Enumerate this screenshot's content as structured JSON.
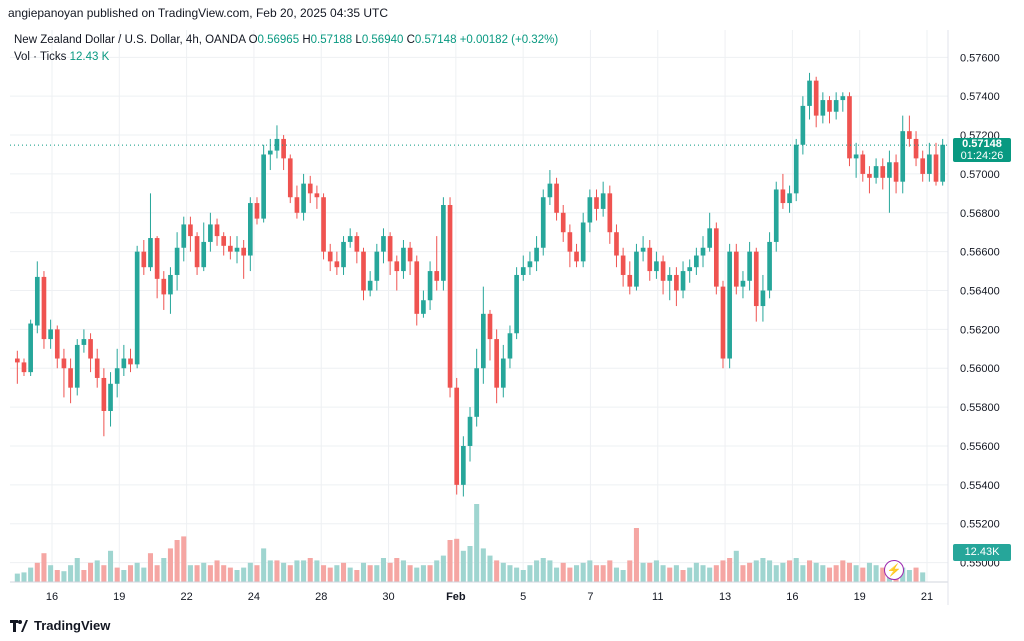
{
  "header": {
    "published": "angiepanoyan published on TradingView.com, Feb 20, 2025 04:35 UTC"
  },
  "legend": {
    "symbol": "New Zealand Dollar / U.S. Dollar, 4h, OANDA",
    "o_label": "O",
    "o_value": "0.56965",
    "h_label": "H",
    "h_value": "0.57188",
    "l_label": "L",
    "l_value": "0.56940",
    "c_label": "C",
    "c_value": "0.57148",
    "change": "+0.00182 (+0.32%)",
    "vol_label": "Vol · Ticks",
    "vol_value": "12.43 K"
  },
  "price_tag": {
    "price": "0.57148",
    "countdown": "01:24:26"
  },
  "vol_tag": "12.43K",
  "footer": {
    "brand": "TradingView"
  },
  "colors": {
    "up": "#26a69a",
    "down": "#ef5350",
    "vol_up": "#9fd5d0",
    "vol_down": "#f5a6a3",
    "grid": "#eef0f3",
    "axis_text": "#131722"
  },
  "chart_data": {
    "type": "candlestick",
    "interval": "4h",
    "ylim": [
      0.549,
      0.5772
    ],
    "y_ticks": [
      "0.57600",
      "0.57400",
      "0.57200",
      "0.57000",
      "0.56800",
      "0.56600",
      "0.56400",
      "0.56200",
      "0.56000",
      "0.55800",
      "0.55600",
      "0.55400",
      "0.55200",
      "0.55000"
    ],
    "x_ticks": [
      "16",
      "19",
      "22",
      "24",
      "28",
      "30",
      "Feb",
      "5",
      "7",
      "11",
      "13",
      "16",
      "19",
      "21"
    ],
    "last_close": 0.57148,
    "candles": [
      [
        0.5605,
        0.5603,
        0.5609,
        0.5592
      ],
      [
        0.5603,
        0.5598,
        0.5605,
        0.5596
      ],
      [
        0.5598,
        0.5623,
        0.5625,
        0.5596
      ],
      [
        0.5622,
        0.5647,
        0.5655,
        0.5618
      ],
      [
        0.5647,
        0.5615,
        0.565,
        0.561
      ],
      [
        0.5615,
        0.562,
        0.5625,
        0.561
      ],
      [
        0.562,
        0.5605,
        0.5622,
        0.56
      ],
      [
        0.5605,
        0.56,
        0.561,
        0.5585
      ],
      [
        0.56,
        0.559,
        0.5605,
        0.5582
      ],
      [
        0.559,
        0.5612,
        0.5615,
        0.5586
      ],
      [
        0.5612,
        0.5615,
        0.562,
        0.5608
      ],
      [
        0.5615,
        0.5605,
        0.5618,
        0.5598
      ],
      [
        0.5605,
        0.5595,
        0.561,
        0.559
      ],
      [
        0.5595,
        0.5578,
        0.56,
        0.5565
      ],
      [
        0.5578,
        0.5592,
        0.5598,
        0.557
      ],
      [
        0.5592,
        0.56,
        0.561,
        0.5585
      ],
      [
        0.56,
        0.5605,
        0.5612,
        0.5596
      ],
      [
        0.5605,
        0.5602,
        0.561,
        0.5598
      ],
      [
        0.5602,
        0.566,
        0.5663,
        0.56
      ],
      [
        0.566,
        0.5652,
        0.5666,
        0.5648
      ],
      [
        0.5652,
        0.5667,
        0.569,
        0.565
      ],
      [
        0.5667,
        0.5646,
        0.5668,
        0.5636
      ],
      [
        0.5646,
        0.5638,
        0.565,
        0.563
      ],
      [
        0.5638,
        0.5648,
        0.5652,
        0.5628
      ],
      [
        0.5648,
        0.5662,
        0.567,
        0.564
      ],
      [
        0.5662,
        0.5674,
        0.5678,
        0.5655
      ],
      [
        0.5674,
        0.5668,
        0.5678,
        0.566
      ],
      [
        0.5668,
        0.5652,
        0.567,
        0.5648
      ],
      [
        0.5652,
        0.5665,
        0.5675,
        0.565
      ],
      [
        0.5665,
        0.5674,
        0.568,
        0.566
      ],
      [
        0.5674,
        0.5668,
        0.5677,
        0.5663
      ],
      [
        0.5668,
        0.5663,
        0.567,
        0.5658
      ],
      [
        0.5663,
        0.566,
        0.5668,
        0.5656
      ],
      [
        0.566,
        0.5662,
        0.5668,
        0.5654
      ],
      [
        0.5662,
        0.5658,
        0.5666,
        0.5646
      ],
      [
        0.5658,
        0.5685,
        0.5688,
        0.565
      ],
      [
        0.5685,
        0.5677,
        0.5688,
        0.5674
      ],
      [
        0.5677,
        0.571,
        0.5715,
        0.5675
      ],
      [
        0.571,
        0.5712,
        0.5718,
        0.5702
      ],
      [
        0.5712,
        0.5718,
        0.5725,
        0.5708
      ],
      [
        0.5718,
        0.5708,
        0.572,
        0.5702
      ],
      [
        0.5708,
        0.5688,
        0.571,
        0.5685
      ],
      [
        0.5688,
        0.568,
        0.5694,
        0.5677
      ],
      [
        0.568,
        0.5695,
        0.57,
        0.5676
      ],
      [
        0.5695,
        0.569,
        0.5699,
        0.5685
      ],
      [
        0.569,
        0.5688,
        0.5694,
        0.5682
      ],
      [
        0.5688,
        0.566,
        0.569,
        0.5656
      ],
      [
        0.566,
        0.5655,
        0.5664,
        0.565
      ],
      [
        0.5655,
        0.5652,
        0.566,
        0.5648
      ],
      [
        0.5652,
        0.5665,
        0.5668,
        0.5648
      ],
      [
        0.5665,
        0.5668,
        0.5672,
        0.5662
      ],
      [
        0.5668,
        0.566,
        0.567,
        0.5654
      ],
      [
        0.566,
        0.564,
        0.5662,
        0.5635
      ],
      [
        0.564,
        0.5645,
        0.565,
        0.5637
      ],
      [
        0.5645,
        0.566,
        0.5664,
        0.564
      ],
      [
        0.566,
        0.5668,
        0.5672,
        0.5654
      ],
      [
        0.5668,
        0.5655,
        0.567,
        0.5648
      ],
      [
        0.5655,
        0.565,
        0.5658,
        0.564
      ],
      [
        0.565,
        0.5662,
        0.5666,
        0.5646
      ],
      [
        0.5662,
        0.5655,
        0.5665,
        0.5648
      ],
      [
        0.5655,
        0.5628,
        0.5658,
        0.5622
      ],
      [
        0.5628,
        0.5635,
        0.564,
        0.5626
      ],
      [
        0.5635,
        0.565,
        0.5655,
        0.563
      ],
      [
        0.565,
        0.5645,
        0.5668,
        0.564
      ],
      [
        0.5645,
        0.5684,
        0.5688,
        0.564
      ],
      [
        0.5684,
        0.559,
        0.5688,
        0.5585
      ],
      [
        0.559,
        0.554,
        0.5595,
        0.5535
      ],
      [
        0.554,
        0.556,
        0.5565,
        0.5534
      ],
      [
        0.556,
        0.5575,
        0.558,
        0.5552
      ],
      [
        0.5575,
        0.56,
        0.561,
        0.557
      ],
      [
        0.56,
        0.5628,
        0.5642,
        0.5592
      ],
      [
        0.5628,
        0.5615,
        0.563,
        0.5604
      ],
      [
        0.5615,
        0.559,
        0.562,
        0.5582
      ],
      [
        0.559,
        0.5605,
        0.5612,
        0.5585
      ],
      [
        0.5605,
        0.5618,
        0.5622,
        0.56
      ],
      [
        0.5618,
        0.5648,
        0.5652,
        0.5615
      ],
      [
        0.5648,
        0.5652,
        0.5658,
        0.5645
      ],
      [
        0.5652,
        0.5655,
        0.566,
        0.5648
      ],
      [
        0.5655,
        0.5662,
        0.5668,
        0.565
      ],
      [
        0.5662,
        0.5688,
        0.5692,
        0.5658
      ],
      [
        0.5688,
        0.5695,
        0.5702,
        0.5684
      ],
      [
        0.5695,
        0.568,
        0.5698,
        0.5676
      ],
      [
        0.568,
        0.567,
        0.5684,
        0.5665
      ],
      [
        0.567,
        0.566,
        0.5674,
        0.5652
      ],
      [
        0.566,
        0.5655,
        0.5664,
        0.5652
      ],
      [
        0.5655,
        0.5675,
        0.568,
        0.5652
      ],
      [
        0.5675,
        0.5688,
        0.5692,
        0.567
      ],
      [
        0.5688,
        0.5682,
        0.5692,
        0.5676
      ],
      [
        0.5682,
        0.569,
        0.5696,
        0.5678
      ],
      [
        0.569,
        0.567,
        0.5694,
        0.5664
      ],
      [
        0.567,
        0.5658,
        0.5674,
        0.5652
      ],
      [
        0.5658,
        0.5648,
        0.5662,
        0.5642
      ],
      [
        0.5648,
        0.5642,
        0.5655,
        0.5638
      ],
      [
        0.5642,
        0.566,
        0.5664,
        0.564
      ],
      [
        0.566,
        0.5662,
        0.5668,
        0.5655
      ],
      [
        0.5662,
        0.565,
        0.5666,
        0.5645
      ],
      [
        0.565,
        0.5655,
        0.566,
        0.5646
      ],
      [
        0.5655,
        0.5645,
        0.5658,
        0.5638
      ],
      [
        0.5645,
        0.5648,
        0.5652,
        0.5635
      ],
      [
        0.5648,
        0.564,
        0.5652,
        0.5632
      ],
      [
        0.564,
        0.565,
        0.5655,
        0.5636
      ],
      [
        0.565,
        0.5652,
        0.5656,
        0.5644
      ],
      [
        0.5652,
        0.5658,
        0.5662,
        0.5648
      ],
      [
        0.5658,
        0.5662,
        0.5668,
        0.5652
      ],
      [
        0.5662,
        0.5672,
        0.568,
        0.566
      ],
      [
        0.5672,
        0.5642,
        0.5675,
        0.5638
      ],
      [
        0.5642,
        0.5605,
        0.5645,
        0.56
      ],
      [
        0.5605,
        0.566,
        0.5664,
        0.56
      ],
      [
        0.566,
        0.5642,
        0.5664,
        0.5638
      ],
      [
        0.5642,
        0.5645,
        0.565,
        0.5636
      ],
      [
        0.5645,
        0.566,
        0.5665,
        0.564
      ],
      [
        0.566,
        0.5632,
        0.5662,
        0.5624
      ],
      [
        0.5632,
        0.564,
        0.5648,
        0.5624
      ],
      [
        0.564,
        0.5665,
        0.567,
        0.5636
      ],
      [
        0.5665,
        0.5692,
        0.5696,
        0.566
      ],
      [
        0.5692,
        0.5685,
        0.57,
        0.5682
      ],
      [
        0.5685,
        0.569,
        0.5694,
        0.568
      ],
      [
        0.569,
        0.5715,
        0.5718,
        0.5686
      ],
      [
        0.5715,
        0.5735,
        0.574,
        0.571
      ],
      [
        0.5735,
        0.5748,
        0.5752,
        0.5728
      ],
      [
        0.5748,
        0.573,
        0.575,
        0.5724
      ],
      [
        0.573,
        0.5738,
        0.5742,
        0.5726
      ],
      [
        0.5738,
        0.5732,
        0.574,
        0.5726
      ],
      [
        0.5732,
        0.5738,
        0.5742,
        0.5728
      ],
      [
        0.5738,
        0.574,
        0.5742,
        0.5732
      ],
      [
        0.574,
        0.5708,
        0.5742,
        0.5704
      ],
      [
        0.5708,
        0.571,
        0.5716,
        0.5698
      ],
      [
        0.571,
        0.57,
        0.5712,
        0.5696
      ],
      [
        0.57,
        0.5698,
        0.5704,
        0.569
      ],
      [
        0.5698,
        0.5704,
        0.5708,
        0.5695
      ],
      [
        0.5704,
        0.5698,
        0.5708,
        0.5692
      ],
      [
        0.5698,
        0.5706,
        0.5712,
        0.568
      ],
      [
        0.5706,
        0.5696,
        0.571,
        0.569
      ],
      [
        0.5696,
        0.5722,
        0.573,
        0.569
      ],
      [
        0.5722,
        0.5718,
        0.573,
        0.5714
      ],
      [
        0.5718,
        0.5708,
        0.5722,
        0.5704
      ],
      [
        0.5708,
        0.57,
        0.5712,
        0.5696
      ],
      [
        0.57,
        0.571,
        0.5716,
        0.5696
      ],
      [
        0.571,
        0.5696,
        0.5716,
        0.5694
      ],
      [
        0.5696,
        0.5715,
        0.5718,
        0.5694
      ]
    ],
    "volume": [
      [
        7,
        1
      ],
      [
        8,
        1
      ],
      [
        12,
        1
      ],
      [
        16,
        0
      ],
      [
        24,
        0
      ],
      [
        14,
        1
      ],
      [
        10,
        0
      ],
      [
        9,
        1
      ],
      [
        14,
        1
      ],
      [
        20,
        1
      ],
      [
        10,
        0
      ],
      [
        16,
        0
      ],
      [
        18,
        1
      ],
      [
        14,
        0
      ],
      [
        26,
        1
      ],
      [
        12,
        0
      ],
      [
        10,
        1
      ],
      [
        14,
        0
      ],
      [
        16,
        1
      ],
      [
        12,
        1
      ],
      [
        24,
        0
      ],
      [
        14,
        0
      ],
      [
        20,
        1
      ],
      [
        28,
        0
      ],
      [
        35,
        0
      ],
      [
        38,
        0
      ],
      [
        14,
        1
      ],
      [
        14,
        0
      ],
      [
        16,
        1
      ],
      [
        14,
        0
      ],
      [
        18,
        0
      ],
      [
        14,
        0
      ],
      [
        12,
        0
      ],
      [
        10,
        1
      ],
      [
        12,
        1
      ],
      [
        16,
        1
      ],
      [
        14,
        0
      ],
      [
        28,
        1
      ],
      [
        18,
        1
      ],
      [
        18,
        0
      ],
      [
        16,
        1
      ],
      [
        14,
        0
      ],
      [
        18,
        1
      ],
      [
        18,
        1
      ],
      [
        20,
        0
      ],
      [
        18,
        1
      ],
      [
        14,
        0
      ],
      [
        12,
        0
      ],
      [
        14,
        1
      ],
      [
        16,
        0
      ],
      [
        12,
        1
      ],
      [
        10,
        0
      ],
      [
        16,
        1
      ],
      [
        14,
        0
      ],
      [
        14,
        1
      ],
      [
        20,
        1
      ],
      [
        16,
        0
      ],
      [
        20,
        0
      ],
      [
        18,
        1
      ],
      [
        14,
        0
      ],
      [
        12,
        1
      ],
      [
        14,
        1
      ],
      [
        14,
        0
      ],
      [
        18,
        1
      ],
      [
        22,
        1
      ],
      [
        35,
        0
      ],
      [
        36,
        0
      ],
      [
        26,
        1
      ],
      [
        30,
        1
      ],
      [
        65,
        1
      ],
      [
        28,
        1
      ],
      [
        22,
        1
      ],
      [
        18,
        0
      ],
      [
        16,
        1
      ],
      [
        14,
        1
      ],
      [
        12,
        1
      ],
      [
        10,
        1
      ],
      [
        14,
        1
      ],
      [
        18,
        1
      ],
      [
        20,
        1
      ],
      [
        18,
        1
      ],
      [
        12,
        1
      ],
      [
        16,
        0
      ],
      [
        12,
        0
      ],
      [
        14,
        1
      ],
      [
        16,
        1
      ],
      [
        18,
        1
      ],
      [
        14,
        0
      ],
      [
        14,
        0
      ],
      [
        18,
        0
      ],
      [
        12,
        1
      ],
      [
        10,
        1
      ],
      [
        18,
        0
      ],
      [
        45,
        0
      ],
      [
        16,
        1
      ],
      [
        16,
        0
      ],
      [
        18,
        1
      ],
      [
        14,
        1
      ],
      [
        12,
        0
      ],
      [
        14,
        1
      ],
      [
        10,
        0
      ],
      [
        12,
        1
      ],
      [
        16,
        1
      ],
      [
        14,
        1
      ],
      [
        12,
        1
      ],
      [
        14,
        0
      ],
      [
        18,
        0
      ],
      [
        20,
        0
      ],
      [
        26,
        1
      ],
      [
        14,
        0
      ],
      [
        16,
        0
      ],
      [
        18,
        1
      ],
      [
        20,
        1
      ],
      [
        18,
        1
      ],
      [
        14,
        1
      ],
      [
        16,
        1
      ],
      [
        18,
        0
      ],
      [
        20,
        1
      ],
      [
        14,
        1
      ],
      [
        18,
        0
      ],
      [
        16,
        1
      ],
      [
        14,
        1
      ],
      [
        12,
        0
      ],
      [
        14,
        0
      ],
      [
        18,
        0
      ],
      [
        16,
        0
      ],
      [
        14,
        1
      ],
      [
        12,
        0
      ],
      [
        16,
        1
      ],
      [
        14,
        1
      ],
      [
        12,
        0
      ],
      [
        14,
        1
      ],
      [
        16,
        0
      ],
      [
        12,
        1
      ],
      [
        10,
        1
      ],
      [
        12,
        0
      ],
      [
        8,
        1
      ]
    ]
  }
}
